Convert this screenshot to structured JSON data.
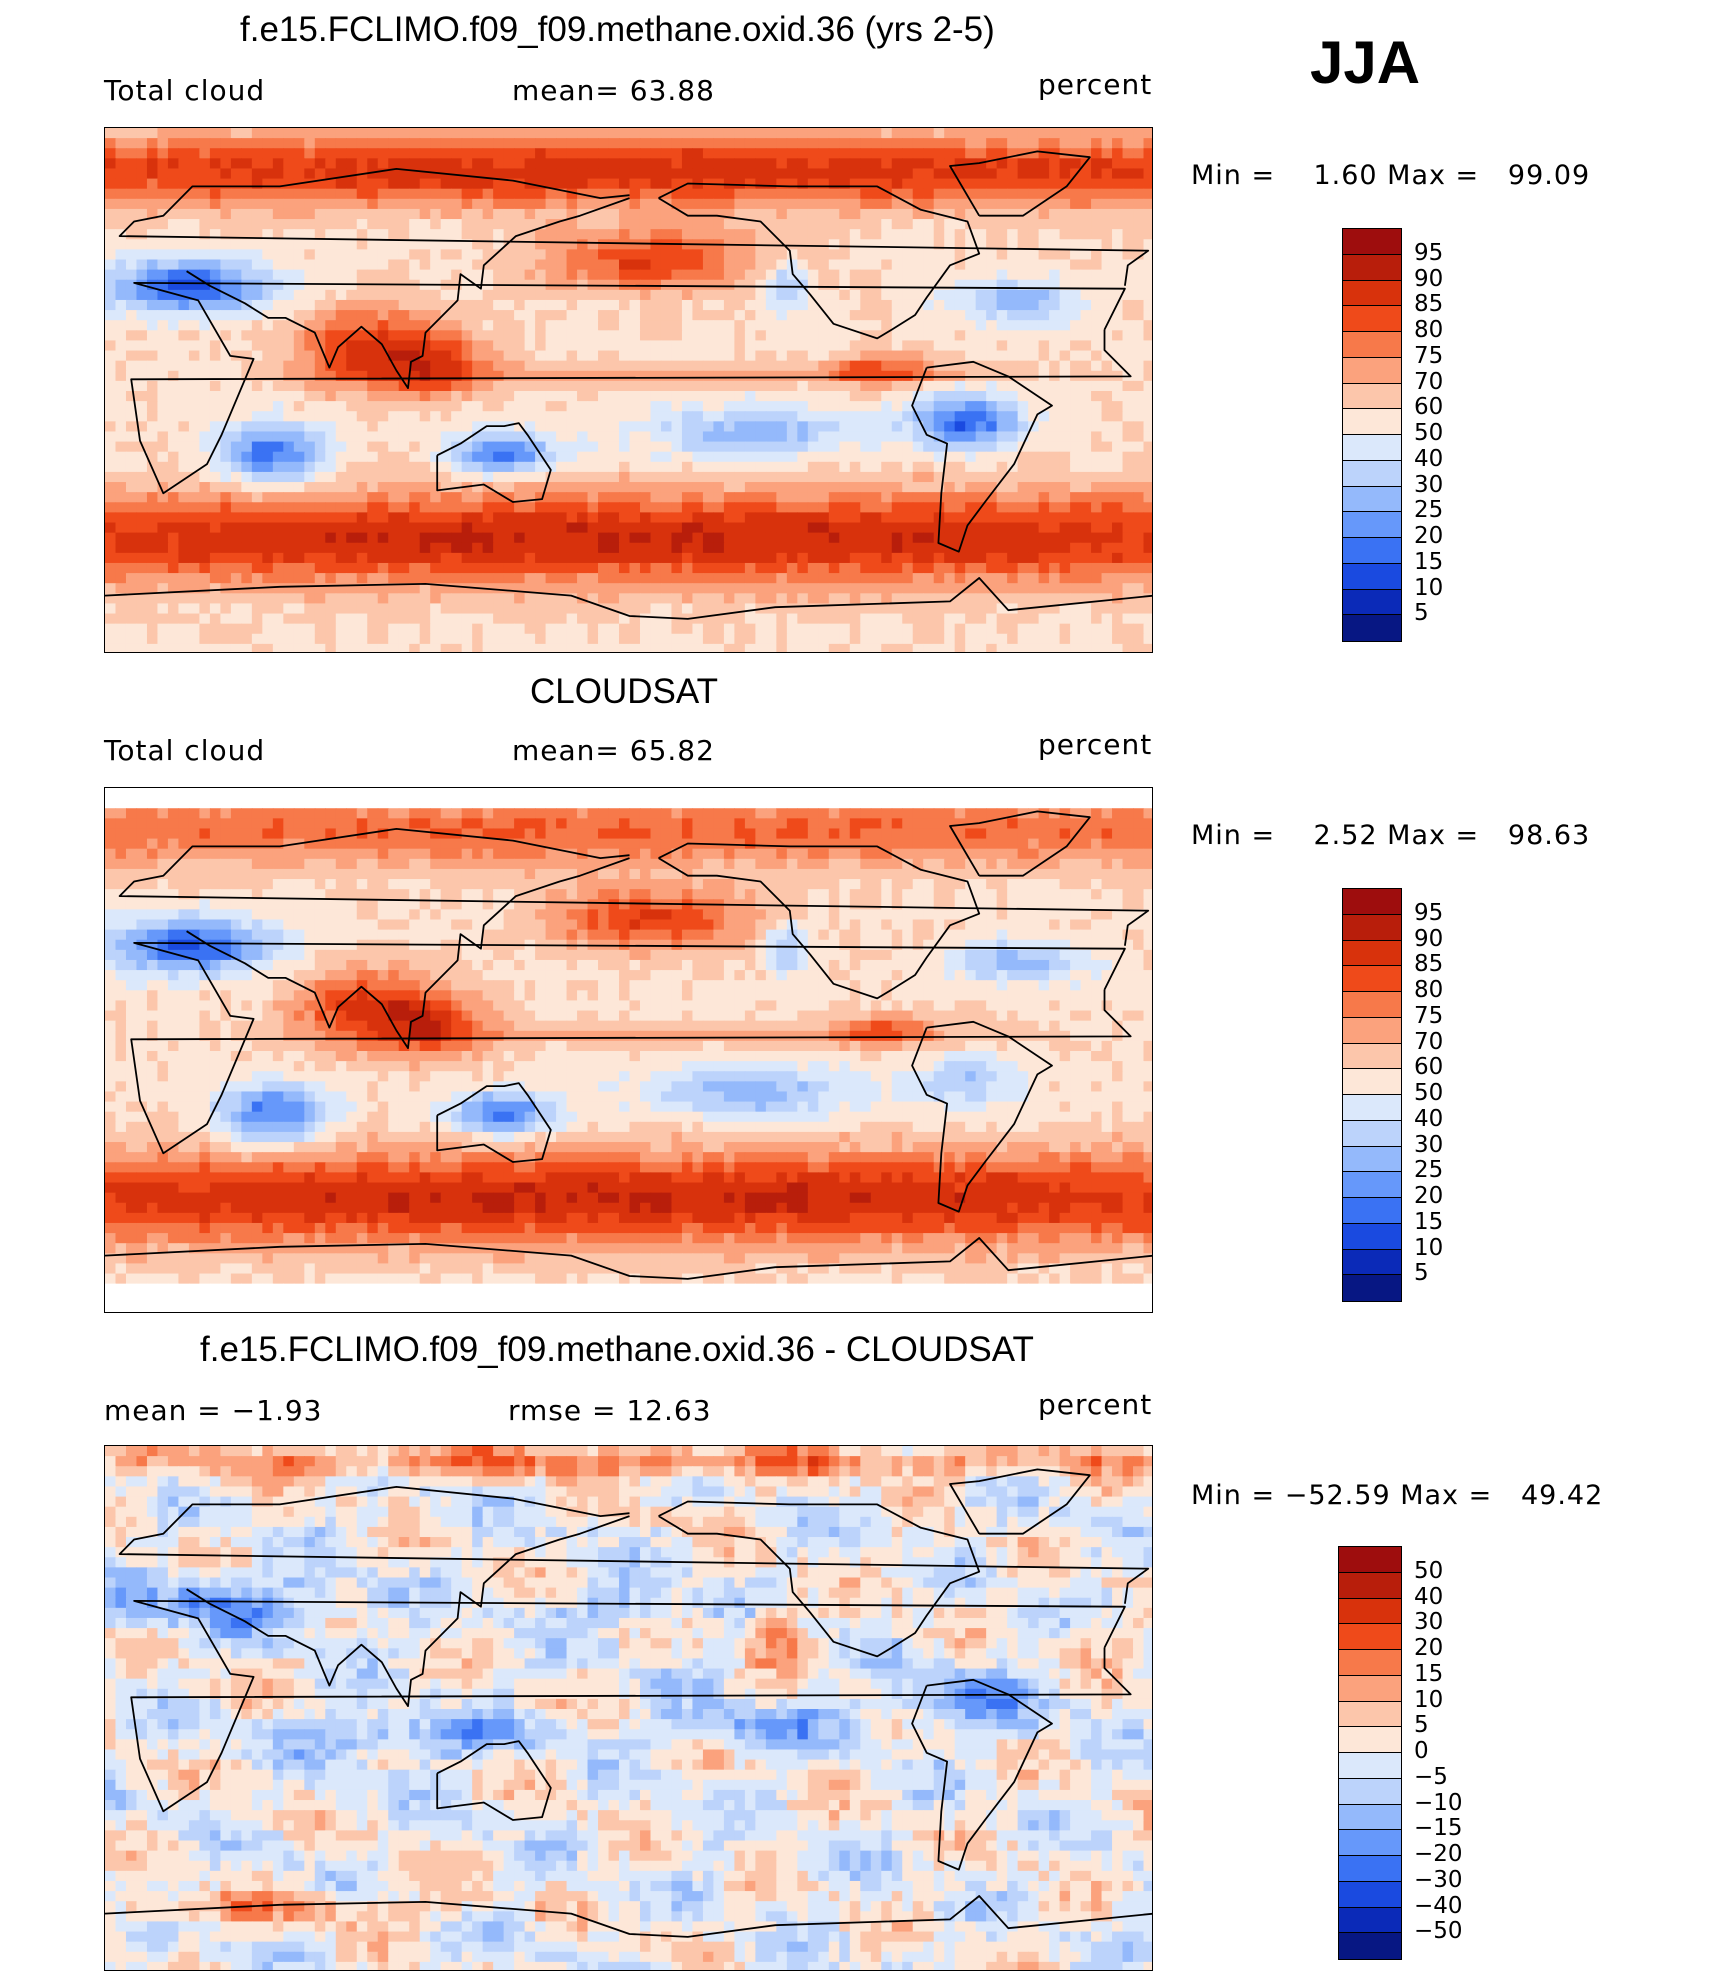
{
  "season": "JJA",
  "panels": [
    {
      "title": "f.e15.FCLIMO.f09_f09.methane.oxid.36 (yrs 2-5)",
      "left_label": "Total cloud",
      "center_label": "mean=   63.88",
      "right_label": "percent",
      "minmax": "Min =    1.60 Max =   99.09",
      "colorbar": {
        "ticks": [
          "95",
          "90",
          "85",
          "80",
          "75",
          "70",
          "60",
          "50",
          "40",
          "30",
          "25",
          "20",
          "15",
          "10",
          "5"
        ],
        "colors": [
          "#9e0d0d",
          "#b81e0b",
          "#d8320c",
          "#ef4a1a",
          "#f7794a",
          "#fba27d",
          "#fcc6ab",
          "#fde7d8",
          "#dbe8fb",
          "#bcd3fb",
          "#94b9fb",
          "#6698fa",
          "#3a72f3",
          "#1a4ae0",
          "#0b2ab8",
          "#071783"
        ]
      },
      "field": "model"
    },
    {
      "title": "CLOUDSAT",
      "left_label": "Total cloud",
      "center_label": "mean=   65.82",
      "right_label": "percent",
      "minmax": "Min =    2.52 Max =   98.63",
      "colorbar": {
        "ticks": [
          "95",
          "90",
          "85",
          "80",
          "75",
          "70",
          "60",
          "50",
          "40",
          "30",
          "25",
          "20",
          "15",
          "10",
          "5"
        ],
        "colors": [
          "#9e0d0d",
          "#b81e0b",
          "#d8320c",
          "#ef4a1a",
          "#f7794a",
          "#fba27d",
          "#fcc6ab",
          "#fde7d8",
          "#dbe8fb",
          "#bcd3fb",
          "#94b9fb",
          "#6698fa",
          "#3a72f3",
          "#1a4ae0",
          "#0b2ab8",
          "#071783"
        ]
      },
      "field": "obs"
    },
    {
      "title": "f.e15.FCLIMO.f09_f09.methane.oxid.36 - CLOUDSAT",
      "left_label": "mean =   −1.93",
      "center_label": "rmse =   12.63",
      "right_label": "percent",
      "minmax": "Min = −52.59 Max =   49.42",
      "colorbar": {
        "ticks": [
          "50",
          "40",
          "30",
          "20",
          "15",
          "10",
          "5",
          "0",
          "−5",
          "−10",
          "−15",
          "−20",
          "−30",
          "−40",
          "−50"
        ],
        "colors": [
          "#9e0d0d",
          "#b81e0b",
          "#d8320c",
          "#ef4a1a",
          "#f7794a",
          "#fba27d",
          "#fcc6ab",
          "#fde7d8",
          "#dbe8fb",
          "#bcd3fb",
          "#94b9fb",
          "#6698fa",
          "#3a72f3",
          "#1a4ae0",
          "#0b2ab8",
          "#071783"
        ]
      },
      "field": "diff"
    }
  ]
}
